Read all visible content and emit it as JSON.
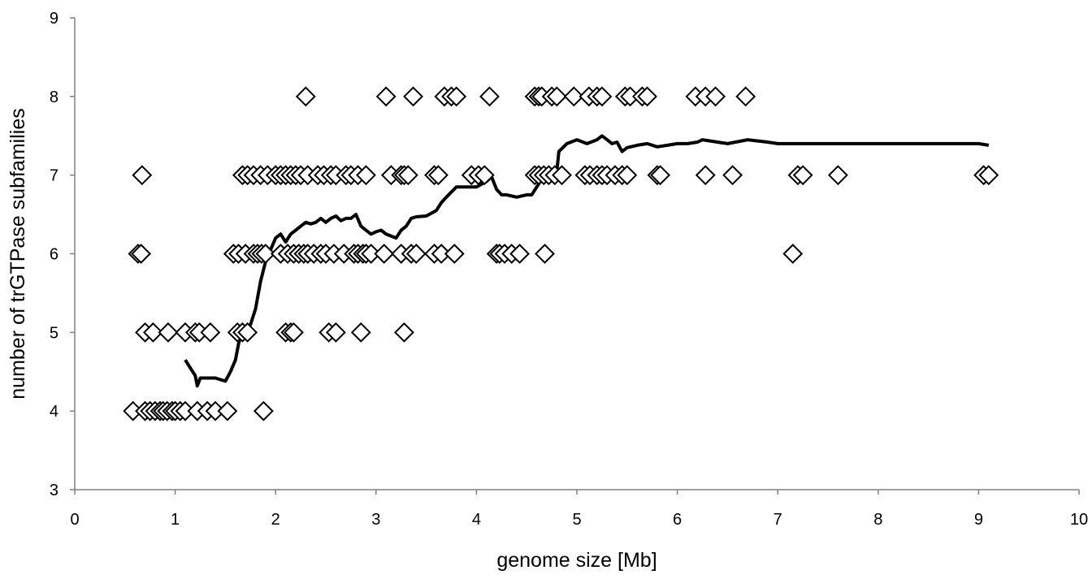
{
  "chart_data": {
    "type": "scatter",
    "xlabel": "genome size [Mb]",
    "ylabel": "number of  trGTPase   subfamilies",
    "xlim": [
      0,
      10
    ],
    "ylim": [
      3,
      9
    ],
    "xticks": [
      "0",
      "1",
      "2",
      "3",
      "4",
      "5",
      "6",
      "7",
      "8",
      "9",
      "10"
    ],
    "yticks": [
      "3",
      "4",
      "5",
      "6",
      "7",
      "8",
      "9"
    ],
    "grid": false,
    "legend": "none",
    "series": [
      {
        "type": "scatter",
        "marker": "diamond",
        "points": [
          [
            0.58,
            4
          ],
          [
            0.7,
            4
          ],
          [
            0.75,
            4
          ],
          [
            0.8,
            4
          ],
          [
            0.85,
            4
          ],
          [
            0.88,
            4
          ],
          [
            0.92,
            4
          ],
          [
            0.97,
            4
          ],
          [
            1.0,
            4
          ],
          [
            1.05,
            4
          ],
          [
            1.1,
            4
          ],
          [
            1.22,
            4
          ],
          [
            1.32,
            4
          ],
          [
            1.4,
            4
          ],
          [
            1.52,
            4
          ],
          [
            1.88,
            4
          ],
          [
            0.7,
            5
          ],
          [
            0.78,
            5
          ],
          [
            0.93,
            5
          ],
          [
            1.1,
            5
          ],
          [
            1.2,
            5
          ],
          [
            1.24,
            5
          ],
          [
            1.35,
            5
          ],
          [
            1.62,
            5
          ],
          [
            1.67,
            5
          ],
          [
            1.72,
            5
          ],
          [
            2.1,
            5
          ],
          [
            2.15,
            5
          ],
          [
            2.18,
            5
          ],
          [
            2.53,
            5
          ],
          [
            2.6,
            5
          ],
          [
            2.85,
            5
          ],
          [
            3.28,
            5
          ],
          [
            0.63,
            6
          ],
          [
            0.66,
            6
          ],
          [
            1.58,
            6
          ],
          [
            1.63,
            6
          ],
          [
            1.7,
            6
          ],
          [
            1.78,
            6
          ],
          [
            1.82,
            6
          ],
          [
            1.86,
            6
          ],
          [
            1.9,
            6
          ],
          [
            2.05,
            6
          ],
          [
            2.12,
            6
          ],
          [
            2.18,
            6
          ],
          [
            2.23,
            6
          ],
          [
            2.28,
            6
          ],
          [
            2.32,
            6
          ],
          [
            2.38,
            6
          ],
          [
            2.45,
            6
          ],
          [
            2.5,
            6
          ],
          [
            2.58,
            6
          ],
          [
            2.68,
            6
          ],
          [
            2.78,
            6
          ],
          [
            2.82,
            6
          ],
          [
            2.87,
            6
          ],
          [
            2.9,
            6
          ],
          [
            2.95,
            6
          ],
          [
            3.08,
            6
          ],
          [
            3.25,
            6
          ],
          [
            3.35,
            6
          ],
          [
            3.4,
            6
          ],
          [
            3.58,
            6
          ],
          [
            3.65,
            6
          ],
          [
            3.78,
            6
          ],
          [
            4.2,
            6
          ],
          [
            4.23,
            6
          ],
          [
            4.28,
            6
          ],
          [
            4.35,
            6
          ],
          [
            4.43,
            6
          ],
          [
            4.68,
            6
          ],
          [
            7.15,
            6
          ],
          [
            0.67,
            7
          ],
          [
            1.67,
            7
          ],
          [
            1.72,
            7
          ],
          [
            1.78,
            7
          ],
          [
            1.85,
            7
          ],
          [
            1.92,
            7
          ],
          [
            2.0,
            7
          ],
          [
            2.05,
            7
          ],
          [
            2.1,
            7
          ],
          [
            2.15,
            7
          ],
          [
            2.2,
            7
          ],
          [
            2.25,
            7
          ],
          [
            2.32,
            7
          ],
          [
            2.42,
            7
          ],
          [
            2.48,
            7
          ],
          [
            2.55,
            7
          ],
          [
            2.6,
            7
          ],
          [
            2.7,
            7
          ],
          [
            2.75,
            7
          ],
          [
            2.82,
            7
          ],
          [
            2.9,
            7
          ],
          [
            3.15,
            7
          ],
          [
            3.25,
            7
          ],
          [
            3.28,
            7
          ],
          [
            3.32,
            7
          ],
          [
            3.58,
            7
          ],
          [
            3.62,
            7
          ],
          [
            3.95,
            7
          ],
          [
            4.02,
            7
          ],
          [
            4.08,
            7
          ],
          [
            4.58,
            7
          ],
          [
            4.62,
            7
          ],
          [
            4.67,
            7
          ],
          [
            4.72,
            7
          ],
          [
            4.78,
            7
          ],
          [
            4.85,
            7
          ],
          [
            5.08,
            7
          ],
          [
            5.13,
            7
          ],
          [
            5.2,
            7
          ],
          [
            5.25,
            7
          ],
          [
            5.3,
            7
          ],
          [
            5.38,
            7
          ],
          [
            5.45,
            7
          ],
          [
            5.5,
            7
          ],
          [
            5.8,
            7
          ],
          [
            5.83,
            7
          ],
          [
            6.28,
            7
          ],
          [
            6.55,
            7
          ],
          [
            7.2,
            7
          ],
          [
            7.25,
            7
          ],
          [
            7.6,
            7
          ],
          [
            9.05,
            7
          ],
          [
            9.1,
            7
          ],
          [
            2.3,
            8
          ],
          [
            3.1,
            8
          ],
          [
            3.37,
            8
          ],
          [
            3.68,
            8
          ],
          [
            3.75,
            8
          ],
          [
            3.8,
            8
          ],
          [
            4.13,
            8
          ],
          [
            4.58,
            8
          ],
          [
            4.62,
            8
          ],
          [
            4.65,
            8
          ],
          [
            4.75,
            8
          ],
          [
            4.8,
            8
          ],
          [
            4.97,
            8
          ],
          [
            5.12,
            8
          ],
          [
            5.2,
            8
          ],
          [
            5.25,
            8
          ],
          [
            5.48,
            8
          ],
          [
            5.53,
            8
          ],
          [
            5.65,
            8
          ],
          [
            5.7,
            8
          ],
          [
            6.18,
            8
          ],
          [
            6.28,
            8
          ],
          [
            6.38,
            8
          ],
          [
            6.68,
            8
          ]
        ]
      },
      {
        "type": "line",
        "points": [
          [
            1.1,
            4.65
          ],
          [
            1.15,
            4.55
          ],
          [
            1.2,
            4.45
          ],
          [
            1.22,
            4.32
          ],
          [
            1.25,
            4.42
          ],
          [
            1.3,
            4.42
          ],
          [
            1.4,
            4.42
          ],
          [
            1.5,
            4.38
          ],
          [
            1.55,
            4.5
          ],
          [
            1.6,
            4.65
          ],
          [
            1.63,
            4.85
          ],
          [
            1.66,
            5.0
          ],
          [
            1.7,
            5.05
          ],
          [
            1.75,
            5.1
          ],
          [
            1.8,
            5.3
          ],
          [
            1.85,
            5.65
          ],
          [
            1.9,
            5.9
          ],
          [
            1.95,
            6.05
          ],
          [
            2.0,
            6.2
          ],
          [
            2.05,
            6.25
          ],
          [
            2.1,
            6.15
          ],
          [
            2.15,
            6.25
          ],
          [
            2.2,
            6.3
          ],
          [
            2.25,
            6.35
          ],
          [
            2.3,
            6.4
          ],
          [
            2.35,
            6.38
          ],
          [
            2.4,
            6.4
          ],
          [
            2.45,
            6.45
          ],
          [
            2.5,
            6.4
          ],
          [
            2.55,
            6.45
          ],
          [
            2.6,
            6.48
          ],
          [
            2.65,
            6.42
          ],
          [
            2.7,
            6.45
          ],
          [
            2.75,
            6.45
          ],
          [
            2.8,
            6.5
          ],
          [
            2.85,
            6.35
          ],
          [
            2.9,
            6.3
          ],
          [
            2.95,
            6.25
          ],
          [
            3.0,
            6.28
          ],
          [
            3.05,
            6.3
          ],
          [
            3.1,
            6.25
          ],
          [
            3.2,
            6.2
          ],
          [
            3.25,
            6.3
          ],
          [
            3.3,
            6.35
          ],
          [
            3.35,
            6.45
          ],
          [
            3.4,
            6.47
          ],
          [
            3.5,
            6.48
          ],
          [
            3.6,
            6.55
          ],
          [
            3.65,
            6.65
          ],
          [
            3.7,
            6.72
          ],
          [
            3.8,
            6.85
          ],
          [
            3.9,
            6.85
          ],
          [
            4.0,
            6.85
          ],
          [
            4.1,
            6.92
          ],
          [
            4.15,
            6.98
          ],
          [
            4.2,
            6.82
          ],
          [
            4.25,
            6.75
          ],
          [
            4.3,
            6.75
          ],
          [
            4.4,
            6.72
          ],
          [
            4.5,
            6.75
          ],
          [
            4.55,
            6.75
          ],
          [
            4.6,
            6.85
          ],
          [
            4.65,
            6.95
          ],
          [
            4.7,
            6.98
          ],
          [
            4.75,
            7.0
          ],
          [
            4.8,
            7.05
          ],
          [
            4.82,
            7.3
          ],
          [
            4.9,
            7.4
          ],
          [
            5.0,
            7.45
          ],
          [
            5.1,
            7.4
          ],
          [
            5.2,
            7.45
          ],
          [
            5.25,
            7.5
          ],
          [
            5.3,
            7.45
          ],
          [
            5.35,
            7.4
          ],
          [
            5.4,
            7.42
          ],
          [
            5.45,
            7.3
          ],
          [
            5.5,
            7.35
          ],
          [
            5.6,
            7.38
          ],
          [
            5.7,
            7.4
          ],
          [
            5.8,
            7.36
          ],
          [
            5.9,
            7.38
          ],
          [
            6.0,
            7.4
          ],
          [
            6.1,
            7.4
          ],
          [
            6.2,
            7.42
          ],
          [
            6.25,
            7.45
          ],
          [
            6.5,
            7.4
          ],
          [
            6.7,
            7.45
          ],
          [
            6.9,
            7.42
          ],
          [
            7.0,
            7.4
          ],
          [
            7.5,
            7.4
          ],
          [
            8.0,
            7.4
          ],
          [
            8.5,
            7.4
          ],
          [
            9.0,
            7.4
          ],
          [
            9.1,
            7.38
          ]
        ]
      }
    ]
  }
}
